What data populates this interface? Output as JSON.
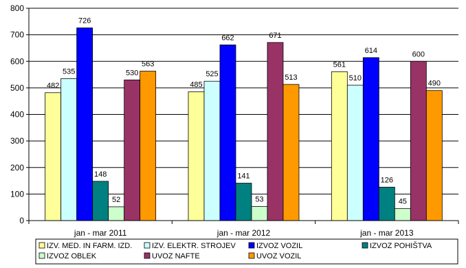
{
  "chart_data": {
    "type": "bar",
    "categories": [
      "jan - mar 2011",
      "jan - mar 2012",
      "jan - mar 2013"
    ],
    "ylim": [
      0,
      800
    ],
    "yticks": [
      0,
      100,
      200,
      300,
      400,
      500,
      600,
      700,
      800
    ],
    "grid": true,
    "legend_position": "bottom",
    "series": [
      {
        "name": "IZV. MED. IN FARM. IZD.",
        "color": "#ffff99",
        "values": [
          482,
          485,
          561
        ]
      },
      {
        "name": "IZV. ELEKTR. STROJEV",
        "color": "#ccffff",
        "values": [
          535,
          525,
          510
        ]
      },
      {
        "name": "IZVOZ VOZIL",
        "color": "#0000ff",
        "values": [
          726,
          662,
          614
        ]
      },
      {
        "name": "IZVOZ POHIŠTVA",
        "color": "#008080",
        "values": [
          148,
          141,
          126
        ]
      },
      {
        "name": "IZVOZ OBLEK",
        "color": "#ccffcc",
        "values": [
          52,
          53,
          45
        ]
      },
      {
        "name": "UVOZ NAFTE",
        "color": "#993366",
        "values": [
          530,
          671,
          600
        ]
      },
      {
        "name": "UVOZ VOZIL",
        "color": "#ff9900",
        "values": [
          563,
          513,
          490
        ]
      }
    ]
  }
}
